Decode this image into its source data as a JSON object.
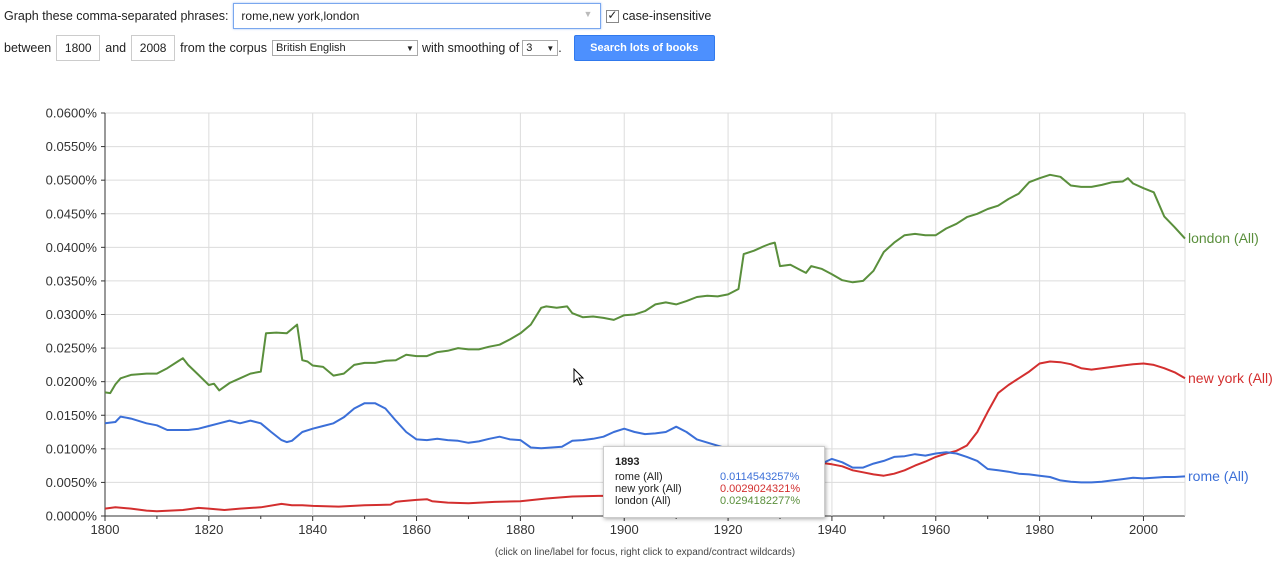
{
  "controls": {
    "phrases_label": "Graph these comma-separated phrases:",
    "phrases_value": "rome,new york,london",
    "case_insensitive_label": "case-insensitive",
    "between_label": "between",
    "start_year": "1800",
    "and_label": "and",
    "end_year": "2008",
    "corpus_label": "from the corpus",
    "corpus_value": "British English",
    "smoothing_label": "with smoothing of",
    "smoothing_value": "3",
    "period": ".",
    "search_button": "Search lots of books"
  },
  "chart_data": {
    "type": "line",
    "title": "",
    "xlabel": "",
    "ylabel": "",
    "xlim": [
      1800,
      2008
    ],
    "ylim": [
      0,
      0.06
    ],
    "x_ticks": [
      1800,
      1820,
      1840,
      1860,
      1880,
      1900,
      1920,
      1940,
      1960,
      1980,
      2000
    ],
    "y_tick_labels": [
      "0.0000%",
      "0.0050%",
      "0.0100%",
      "0.0150%",
      "0.0200%",
      "0.0250%",
      "0.0300%",
      "0.0350%",
      "0.0400%",
      "0.0450%",
      "0.0500%",
      "0.0550%",
      "0.0600%"
    ],
    "grid": true,
    "series": [
      {
        "name": "london (All)",
        "color": "#5a8f3c",
        "x": [
          1800,
          1801,
          1802,
          1803,
          1805,
          1808,
          1810,
          1812,
          1814,
          1815,
          1816,
          1818,
          1820,
          1821,
          1822,
          1824,
          1826,
          1828,
          1830,
          1831,
          1833,
          1835,
          1837,
          1838,
          1839,
          1840,
          1842,
          1844,
          1846,
          1848,
          1850,
          1852,
          1854,
          1856,
          1858,
          1860,
          1862,
          1864,
          1866,
          1868,
          1870,
          1872,
          1874,
          1876,
          1878,
          1880,
          1882,
          1884,
          1885,
          1887,
          1889,
          1890,
          1892,
          1894,
          1896,
          1898,
          1900,
          1902,
          1904,
          1906,
          1908,
          1910,
          1912,
          1914,
          1916,
          1918,
          1920,
          1922,
          1923,
          1925,
          1927,
          1928,
          1929,
          1930,
          1932,
          1934,
          1935,
          1936,
          1938,
          1940,
          1942,
          1944,
          1946,
          1948,
          1950,
          1952,
          1954,
          1956,
          1958,
          1960,
          1962,
          1964,
          1966,
          1968,
          1970,
          1972,
          1974,
          1976,
          1978,
          1980,
          1982,
          1984,
          1986,
          1988,
          1990,
          1992,
          1994,
          1996,
          1997,
          1998,
          2000,
          2002,
          2004,
          2006,
          2008
        ],
        "values": [
          0.0184,
          0.0183,
          0.0196,
          0.0205,
          0.021,
          0.0212,
          0.0212,
          0.022,
          0.023,
          0.0235,
          0.0225,
          0.021,
          0.0195,
          0.0197,
          0.0187,
          0.0198,
          0.0205,
          0.0212,
          0.0215,
          0.0272,
          0.0273,
          0.0272,
          0.0285,
          0.0232,
          0.023,
          0.0224,
          0.0222,
          0.0209,
          0.0212,
          0.0225,
          0.0228,
          0.0228,
          0.0231,
          0.0232,
          0.024,
          0.0238,
          0.0238,
          0.0244,
          0.0246,
          0.025,
          0.0248,
          0.0248,
          0.0252,
          0.0255,
          0.0263,
          0.0272,
          0.0285,
          0.031,
          0.0312,
          0.031,
          0.0312,
          0.0302,
          0.0296,
          0.0297,
          0.0295,
          0.0292,
          0.0299,
          0.03,
          0.0305,
          0.0315,
          0.0318,
          0.0315,
          0.032,
          0.0326,
          0.0328,
          0.0327,
          0.033,
          0.0338,
          0.039,
          0.0395,
          0.0402,
          0.0405,
          0.0407,
          0.0372,
          0.0374,
          0.0366,
          0.0362,
          0.0372,
          0.0368,
          0.036,
          0.0351,
          0.0348,
          0.035,
          0.0365,
          0.0393,
          0.0407,
          0.0418,
          0.042,
          0.0418,
          0.0418,
          0.0428,
          0.0435,
          0.0445,
          0.045,
          0.0457,
          0.0462,
          0.0472,
          0.048,
          0.0497,
          0.0503,
          0.0508,
          0.0505,
          0.0492,
          0.049,
          0.049,
          0.0493,
          0.0497,
          0.0498,
          0.0503,
          0.0495,
          0.0488,
          0.0482,
          0.0446,
          0.043,
          0.0413
        ]
      },
      {
        "name": "new york (All)",
        "color": "#d32f2f",
        "x": [
          1800,
          1802,
          1805,
          1808,
          1810,
          1815,
          1818,
          1820,
          1823,
          1826,
          1830,
          1834,
          1836,
          1838,
          1840,
          1845,
          1850,
          1855,
          1856,
          1857,
          1860,
          1862,
          1863,
          1866,
          1870,
          1875,
          1880,
          1885,
          1890,
          1895,
          1900,
          1932,
          1935,
          1938,
          1940,
          1942,
          1944,
          1946,
          1948,
          1950,
          1952,
          1954,
          1956,
          1958,
          1960,
          1962,
          1964,
          1966,
          1968,
          1970,
          1972,
          1974,
          1976,
          1978,
          1980,
          1982,
          1984,
          1986,
          1988,
          1990,
          1992,
          1994,
          1996,
          1998,
          2000,
          2002,
          2004,
          2006,
          2008
        ],
        "values": [
          0.0011,
          0.0013,
          0.0011,
          0.0008,
          0.0007,
          0.0009,
          0.0012,
          0.0011,
          0.0009,
          0.0011,
          0.0013,
          0.0018,
          0.0016,
          0.0016,
          0.0015,
          0.0014,
          0.0016,
          0.0017,
          0.0021,
          0.0022,
          0.0024,
          0.0025,
          0.0022,
          0.002,
          0.0019,
          0.0021,
          0.0022,
          0.0026,
          0.0029,
          0.003,
          0.003,
          0.0075,
          0.0076,
          0.0079,
          0.0077,
          0.0074,
          0.0068,
          0.0065,
          0.0062,
          0.006,
          0.0063,
          0.0068,
          0.0075,
          0.0081,
          0.0088,
          0.0093,
          0.0097,
          0.0105,
          0.0125,
          0.0155,
          0.0183,
          0.0195,
          0.0205,
          0.0215,
          0.0227,
          0.023,
          0.0229,
          0.0226,
          0.022,
          0.0218,
          0.022,
          0.0222,
          0.0224,
          0.0226,
          0.0227,
          0.0225,
          0.022,
          0.0214,
          0.0205
        ]
      },
      {
        "name": "rome (All)",
        "color": "#3b6fd8",
        "x": [
          1800,
          1802,
          1803,
          1805,
          1808,
          1810,
          1812,
          1814,
          1816,
          1818,
          1820,
          1822,
          1824,
          1826,
          1828,
          1830,
          1832,
          1834,
          1835,
          1836,
          1838,
          1840,
          1842,
          1844,
          1846,
          1848,
          1850,
          1852,
          1854,
          1856,
          1858,
          1860,
          1862,
          1864,
          1866,
          1868,
          1870,
          1872,
          1874,
          1876,
          1878,
          1880,
          1882,
          1884,
          1886,
          1888,
          1890,
          1892,
          1894,
          1896,
          1898,
          1900,
          1902,
          1904,
          1906,
          1908,
          1910,
          1912,
          1914,
          1932,
          1935,
          1938,
          1940,
          1942,
          1944,
          1946,
          1948,
          1950,
          1952,
          1954,
          1956,
          1958,
          1960,
          1962,
          1964,
          1966,
          1968,
          1970,
          1972,
          1974,
          1976,
          1978,
          1980,
          1982,
          1984,
          1986,
          1988,
          1990,
          1992,
          1994,
          1996,
          1998,
          2000,
          2002,
          2004,
          2006,
          2008
        ],
        "values": [
          0.0138,
          0.014,
          0.0148,
          0.0145,
          0.0138,
          0.0135,
          0.0128,
          0.0128,
          0.0128,
          0.013,
          0.0134,
          0.0138,
          0.0142,
          0.0138,
          0.0142,
          0.0138,
          0.0125,
          0.0113,
          0.011,
          0.0112,
          0.0125,
          0.013,
          0.0134,
          0.0138,
          0.0147,
          0.016,
          0.0168,
          0.0168,
          0.016,
          0.0142,
          0.0125,
          0.0114,
          0.0113,
          0.0115,
          0.0113,
          0.0112,
          0.0109,
          0.0111,
          0.0115,
          0.0118,
          0.0114,
          0.0113,
          0.0102,
          0.0101,
          0.0102,
          0.0103,
          0.0112,
          0.0113,
          0.0115,
          0.0118,
          0.0125,
          0.013,
          0.0125,
          0.0122,
          0.0123,
          0.0125,
          0.0133,
          0.0125,
          0.0114,
          0.0072,
          0.0074,
          0.0078,
          0.0085,
          0.008,
          0.0072,
          0.0072,
          0.0078,
          0.0082,
          0.0088,
          0.0089,
          0.0092,
          0.009,
          0.0093,
          0.0095,
          0.0093,
          0.0088,
          0.0082,
          0.007,
          0.0068,
          0.0066,
          0.0063,
          0.0062,
          0.006,
          0.0058,
          0.0053,
          0.0051,
          0.005,
          0.005,
          0.0051,
          0.0053,
          0.0055,
          0.0057,
          0.0056,
          0.0057,
          0.0058,
          0.0058,
          0.0059
        ]
      }
    ],
    "tooltip": {
      "year": "1893",
      "rows": [
        {
          "name": "rome (All)",
          "value": "0.0114543257%",
          "color": "#3b6fd8"
        },
        {
          "name": "new york (All)",
          "value": "0.0029024321%",
          "color": "#d32f2f"
        },
        {
          "name": "london (All)",
          "value": "0.0294182277%",
          "color": "#5a8f3c"
        }
      ]
    },
    "footnote": "(click on line/label for focus, right click to expand/contract wildcards)"
  }
}
